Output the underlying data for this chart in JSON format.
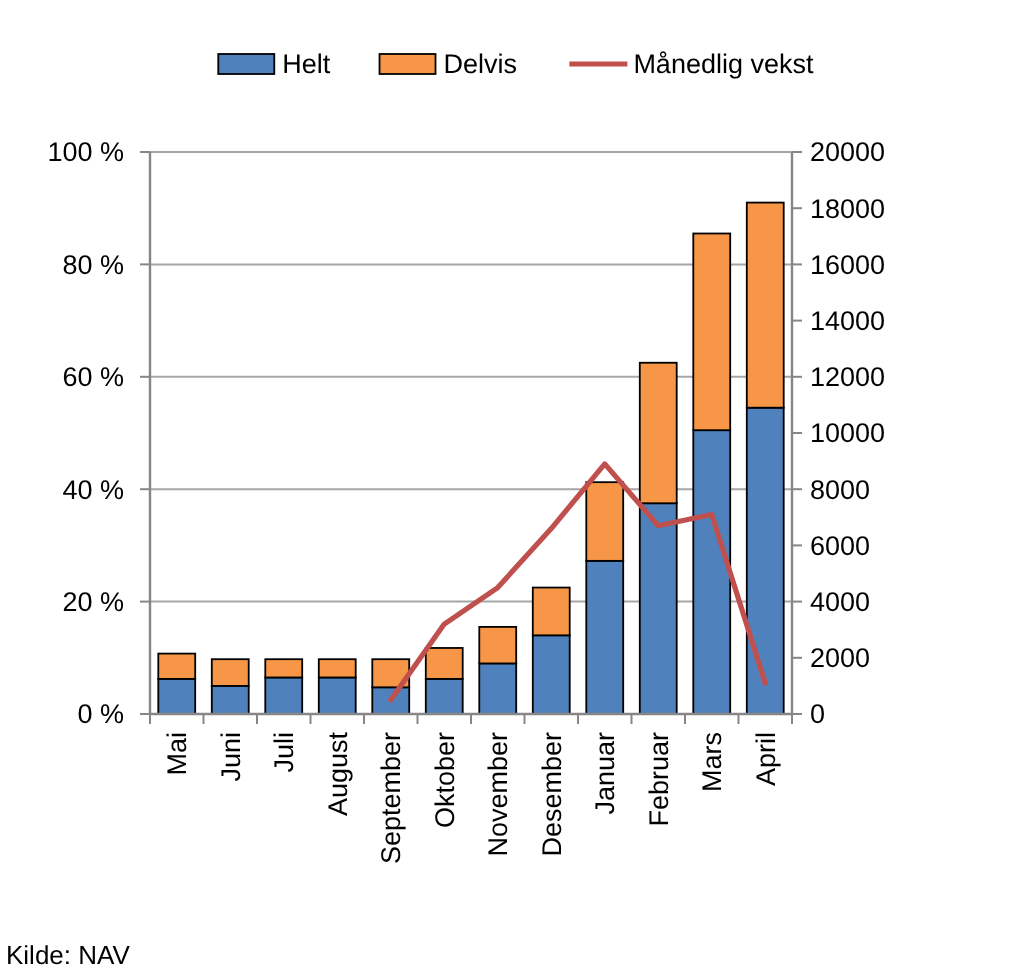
{
  "chart_data": {
    "type": "bar",
    "stacked": true,
    "categories": [
      "Mai",
      "Juni",
      "Juli",
      "August",
      "September",
      "Oktober",
      "November",
      "Desember",
      "Januar",
      "Februar",
      "Mars",
      "April"
    ],
    "series": [
      {
        "name": "Helt",
        "color": "#4f81bd",
        "axis": "y2",
        "values": [
          1250,
          1000,
          1300,
          1300,
          950,
          1250,
          1800,
          2800,
          5450,
          7500,
          10100,
          10900
        ]
      },
      {
        "name": "Delvis",
        "color": "#f79646",
        "axis": "y2",
        "values": [
          900,
          950,
          650,
          650,
          1000,
          1100,
          1300,
          1700,
          2800,
          5000,
          7000,
          7300
        ]
      },
      {
        "name": "Månedlig vekst",
        "type": "line",
        "color": "#c0504d",
        "values": [
          null,
          null,
          null,
          null,
          2.5,
          16,
          22.5,
          33,
          44.5,
          33.5,
          35.5,
          5.5
        ]
      }
    ],
    "ylim": [
      0,
      100
    ],
    "yticks": [
      {
        "value": 0,
        "label": "0 %"
      },
      {
        "value": 20,
        "label": "20 %"
      },
      {
        "value": 40,
        "label": "40 %"
      },
      {
        "value": 60,
        "label": "60 %"
      },
      {
        "value": 80,
        "label": "80 %"
      },
      {
        "value": 100,
        "label": "100 %"
      }
    ],
    "y2lim": [
      0,
      20000
    ],
    "y2ticks": [
      0,
      2000,
      4000,
      6000,
      8000,
      10000,
      12000,
      14000,
      16000,
      18000,
      20000
    ],
    "grid": "y",
    "legend": "top",
    "annotations": [
      "Kilde: NAV"
    ]
  }
}
